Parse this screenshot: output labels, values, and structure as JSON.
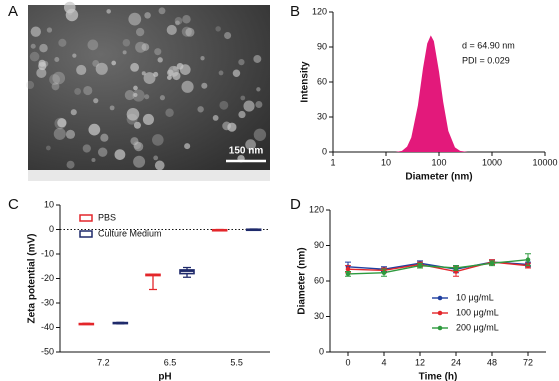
{
  "chart_data": [
    {
      "type": "image",
      "panel_label": "A",
      "scale_bar_label": "150 nm"
    },
    {
      "type": "area",
      "panel_label": "B",
      "x": [
        15,
        20,
        25,
        30,
        40,
        50,
        60,
        70,
        80,
        100,
        120,
        150,
        200,
        250,
        350
      ],
      "series": [
        {
          "color": "#e3197b",
          "values": [
            0,
            1,
            4.6,
            12.4,
            40,
            72,
            93,
            100,
            95,
            69,
            43,
            18,
            4,
            1,
            0
          ]
        }
      ],
      "xscale": "log",
      "xlim": [
        1,
        10000
      ],
      "xticks": [
        1,
        10,
        100,
        1000,
        10000
      ],
      "ylim": [
        0,
        120
      ],
      "yticks": [
        0,
        30,
        60,
        90,
        120
      ],
      "xlabel": "Diameter (nm)",
      "ylabel": "Intensity",
      "annotations": [
        "d = 64.90 nm",
        "PDI = 0.029"
      ]
    },
    {
      "type": "box",
      "panel_label": "C",
      "categories": [
        "7.2",
        "6.5",
        "5.5"
      ],
      "series": [
        {
          "name": "PBS",
          "color": "#e3262b",
          "boxes": [
            {
              "min": -38.7,
              "q1": -38.6,
              "median": -38.5,
              "q3": -38.4,
              "max": -38.3
            },
            {
              "min": -24.5,
              "q1": -18.8,
              "median": -18.5,
              "q3": -18.3,
              "max": -18.2
            },
            {
              "min": -0.4,
              "q1": -0.3,
              "median": -0.2,
              "q3": -0.1,
              "max": 0
            }
          ]
        },
        {
          "name": "Culture Medium",
          "color": "#1f2a6b",
          "boxes": [
            {
              "min": -38.5,
              "q1": -38.3,
              "median": -38.2,
              "q3": -38.0,
              "max": -37.9
            },
            {
              "min": -19.5,
              "q1": -18,
              "median": -17,
              "q3": -16.5,
              "max": -15.5
            },
            {
              "min": -0.3,
              "q1": -0.2,
              "median": 0,
              "q3": 0.1,
              "max": 0.2
            }
          ]
        }
      ],
      "ylim": [
        -50,
        10
      ],
      "yticks": [
        -50,
        -40,
        -30,
        -20,
        -10,
        0,
        10
      ],
      "reference_line": 0,
      "xlabel": "pH",
      "ylabel": "Zeta potential (mV)"
    },
    {
      "type": "line",
      "panel_label": "D",
      "categories": [
        "0",
        "4",
        "12",
        "24",
        "48",
        "72"
      ],
      "series": [
        {
          "name": "10 μg/mL",
          "color": "#1f3fa0",
          "values": [
            72,
            70,
            75,
            70,
            76,
            74
          ],
          "errors": [
            4,
            2,
            2,
            3,
            2,
            2
          ]
        },
        {
          "name": "100 μg/mL",
          "color": "#e3262b",
          "values": [
            70,
            69,
            74,
            68,
            76,
            73
          ],
          "errors": [
            3,
            2,
            2,
            4,
            2,
            2
          ]
        },
        {
          "name": "200 μg/mL",
          "color": "#2e9a3e",
          "values": [
            66,
            67,
            73,
            71,
            75,
            78
          ],
          "errors": [
            2,
            3,
            2,
            2,
            2,
            5
          ]
        }
      ],
      "ylim": [
        0,
        120
      ],
      "yticks": [
        0,
        30,
        60,
        90,
        120
      ],
      "xlabel": "Time (h)",
      "ylabel": "Diameter (nm)"
    }
  ]
}
